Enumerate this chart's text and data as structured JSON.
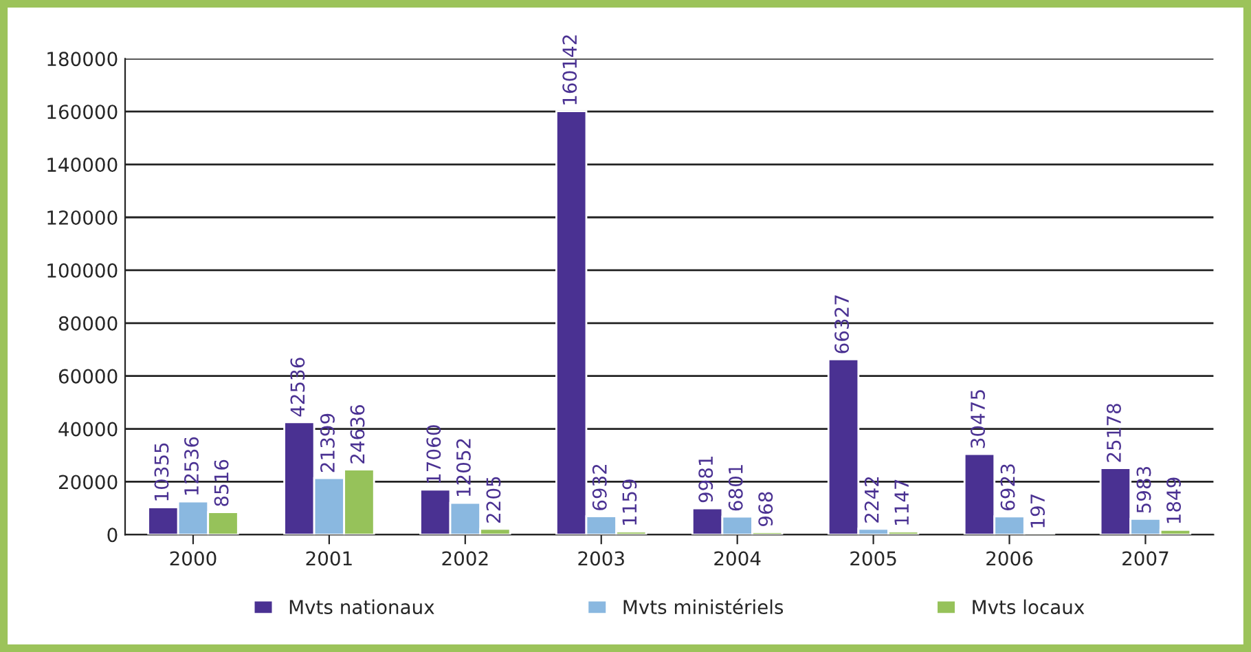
{
  "chart_data": {
    "type": "bar",
    "categories": [
      "2000",
      "2001",
      "2002",
      "2003",
      "2004",
      "2005",
      "2006",
      "2007"
    ],
    "series": [
      {
        "name": "Mvts nationaux",
        "color": "#4a3192",
        "values": [
          10355,
          42536,
          17060,
          160142,
          9981,
          66327,
          30475,
          25178
        ]
      },
      {
        "name": "Mvts ministériels",
        "color": "#8ab8e0",
        "values": [
          12536,
          21399,
          12052,
          6932,
          6801,
          2242,
          6923,
          5983
        ]
      },
      {
        "name": "Mvts locaux",
        "color": "#96c25a",
        "values": [
          8516,
          24636,
          2205,
          1159,
          968,
          1147,
          197,
          1849
        ]
      }
    ],
    "ylim": [
      0,
      180000
    ],
    "yticks": [
      0,
      20000,
      40000,
      60000,
      80000,
      100000,
      120000,
      140000,
      160000,
      180000
    ],
    "grid": "y",
    "legend": "bottom",
    "data_labels": true
  }
}
